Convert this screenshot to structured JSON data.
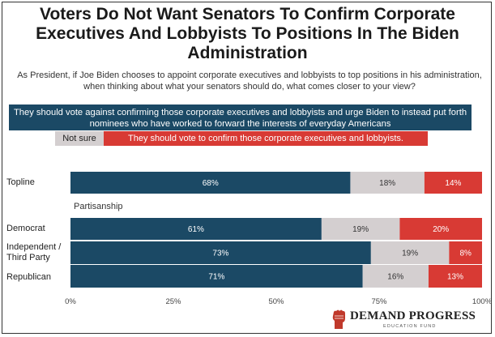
{
  "title": "Voters Do Not Want Senators To Confirm Corporate Executives And Lobbyists To Positions In The Biden Administration",
  "subtitle": "As President, if Joe Biden chooses to appoint corporate executives and lobbyists to top positions in his administration, when thinking about what your senators should do, what comes closer to your view?",
  "legend": {
    "against": "They should vote against confirming those corporate executives and lobbyists and urge Biden to instead put forth nominees who have worked to forward the interests of everyday Americans",
    "not_sure": "Not sure",
    "confirm": "They should vote to confirm those corporate executives and lobbyists."
  },
  "colors": {
    "against": "#1b4965",
    "not_sure": "#d4cfd0",
    "confirm": "#d83a34"
  },
  "section_label": "Partisanship",
  "logo": {
    "name": "DEMAND PROGRESS",
    "sub": "EDUCATION FUND"
  },
  "chart_data": {
    "type": "bar",
    "orientation": "horizontal",
    "stacked": true,
    "categories": [
      "Topline",
      "Democrat",
      "Independent / Third Party",
      "Republican"
    ],
    "series": [
      {
        "name": "They should vote against confirming those corporate executives and lobbyists and urge Biden to instead put forth nominees who have worked to forward the interests of everyday Americans",
        "values": [
          68,
          61,
          73,
          71
        ],
        "labels": [
          "68%",
          "61%",
          "73%",
          "71%"
        ]
      },
      {
        "name": "Not sure",
        "values": [
          18,
          19,
          19,
          16
        ],
        "labels": [
          "18%",
          "19%",
          "19%",
          "16%"
        ]
      },
      {
        "name": "They should vote to confirm those corporate executives and lobbyists.",
        "values": [
          14,
          20,
          8,
          13
        ],
        "labels": [
          "14%",
          "20%",
          "8%",
          "13%"
        ]
      }
    ],
    "xlim": [
      0,
      100
    ],
    "xticks": [
      "0%",
      "25%",
      "50%",
      "75%",
      "100%"
    ],
    "grid": false,
    "legend_position": "top"
  }
}
